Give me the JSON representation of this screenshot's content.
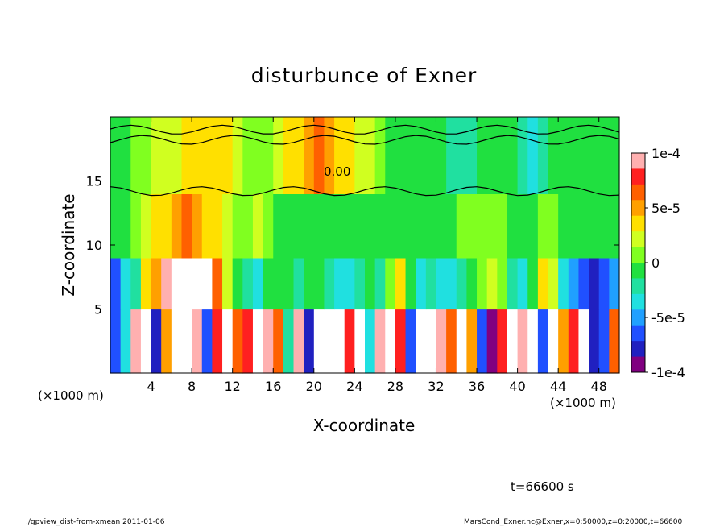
{
  "chart_data": {
    "type": "heatmap",
    "title": "disturbunce of Exner",
    "xlabel": "X-coordinate",
    "ylabel": "Z-coordinate",
    "x_unit_label_left": "(×1000 m)",
    "x_unit_label_right": "(×1000 m)",
    "xlim": [
      0,
      50
    ],
    "ylim": [
      0,
      20
    ],
    "x_ticks": [
      4,
      8,
      12,
      16,
      20,
      24,
      28,
      32,
      36,
      40,
      44,
      48
    ],
    "y_ticks": [
      5,
      10,
      15
    ],
    "colorbar": {
      "min": -0.0001,
      "max": 0.0001,
      "tick_values": [
        0.0001,
        5e-05,
        0,
        -5e-05,
        -0.0001
      ],
      "tick_labels": [
        "1e-4",
        "5e-5",
        "0",
        "-5e-5",
        "-1e-4"
      ],
      "colors": [
        "#ffb0b0",
        "#ff2020",
        "#ff6000",
        "#ffa000",
        "#ffe000",
        "#d0ff20",
        "#80ff20",
        "#20e040",
        "#20e0a0",
        "#20e0e0",
        "#20a0ff",
        "#2050ff",
        "#2020c0",
        "#800080"
      ]
    },
    "contour_label": "0.00",
    "time_label": "t=66600 s",
    "bands": [
      {
        "z0": 0,
        "z1": 5,
        "profile": [
          -0.7,
          -0.3,
          0.9,
          1.2,
          -0.8,
          0.5,
          1.3,
          1.4,
          0.9,
          -0.6,
          0.8,
          1.2,
          0.6,
          0.8,
          1.0,
          0.9,
          0.7,
          -0.2,
          0.9,
          -0.8,
          1.2,
          1.1,
          1.0,
          0.8,
          1.3,
          -0.4,
          0.9,
          1.2,
          0.8,
          -0.6,
          1.1,
          1.0,
          0.9,
          0.7,
          1.2,
          0.5,
          -0.7,
          -0.9,
          0.8,
          1.1,
          0.9,
          1.3,
          -0.7,
          1.1,
          0.5,
          0.8,
          1.2,
          -0.8,
          -0.6,
          0.6
        ]
      },
      {
        "z0": 5,
        "z1": 9,
        "profile": [
          -0.6,
          -0.4,
          -0.2,
          0.3,
          0.5,
          0.9,
          1.0,
          1.2,
          1.2,
          1.0,
          0.6,
          0.2,
          0.0,
          -0.2,
          -0.3,
          -0.1,
          0.0,
          -0.1,
          -0.2,
          0.0,
          0.0,
          -0.2,
          -0.3,
          -0.4,
          -0.2,
          -0.1,
          -0.2,
          0.1,
          0.4,
          -0.1,
          -0.3,
          -0.2,
          -0.4,
          -0.3,
          -0.2,
          -0.1,
          0.1,
          0.2,
          0.1,
          -0.2,
          -0.3,
          -0.1,
          0.3,
          0.2,
          -0.3,
          -0.5,
          -0.6,
          -0.8,
          -0.6,
          -0.5
        ]
      },
      {
        "z0": 9,
        "z1": 14,
        "profile": [
          0.0,
          0.0,
          0.1,
          0.2,
          0.3,
          0.4,
          0.5,
          0.6,
          0.5,
          0.4,
          0.3,
          0.2,
          0.1,
          0.1,
          0.2,
          0.1,
          0.0,
          0.0,
          0.0,
          -0.05,
          -0.05,
          0.0,
          0.0,
          0.0,
          -0.05,
          -0.05,
          0.0,
          0.0,
          0.0,
          0.0,
          0.0,
          0.0,
          0.0,
          0.0,
          0.05,
          0.05,
          0.1,
          0.1,
          0.05,
          0.0,
          0.0,
          0.0,
          0.05,
          0.05,
          0.0,
          0.0,
          0.0,
          0.0,
          0.0,
          0.0
        ]
      },
      {
        "z0": 14,
        "z1": 20,
        "profile": [
          0.0,
          0.0,
          0.1,
          0.1,
          0.2,
          0.2,
          0.2,
          0.3,
          0.3,
          0.3,
          0.3,
          0.3,
          0.2,
          0.1,
          0.1,
          0.1,
          0.2,
          0.3,
          0.4,
          0.5,
          0.6,
          0.5,
          0.4,
          0.3,
          0.2,
          0.2,
          0.1,
          0.0,
          0.0,
          0.0,
          0.0,
          -0.1,
          -0.1,
          -0.2,
          -0.2,
          -0.2,
          -0.1,
          -0.1,
          0.0,
          -0.1,
          -0.2,
          -0.3,
          -0.2,
          -0.1,
          0.0,
          0.0,
          0.0,
          0.0,
          0.0,
          0.0
        ]
      }
    ]
  },
  "footer": {
    "left": "./gpview_dist-from-xmean  2011-01-06",
    "right": "MarsCond_Exner.nc@Exner,x=0:50000,z=0:20000,t=66600"
  }
}
